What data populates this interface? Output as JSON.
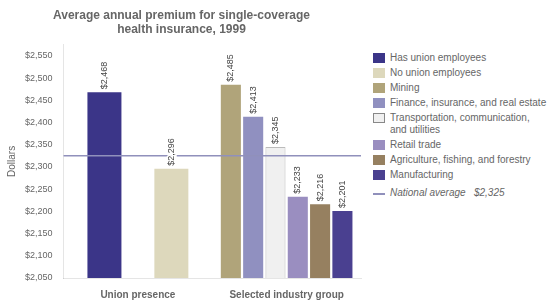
{
  "chart_data": {
    "type": "bar",
    "title": "Average annual premium for single-coverage\nhealth insurance, 1999",
    "ylabel": "Dollars",
    "categories": [
      "Union presence",
      "Selected industry group"
    ],
    "series": [
      {
        "name": "Has union employees",
        "color": "#3b3588",
        "values": [
          2468,
          null
        ],
        "value_labels": [
          "$2,468",
          null
        ]
      },
      {
        "name": "No union employees",
        "color": "#ddd8bc",
        "values": [
          2296,
          null
        ],
        "value_labels": [
          "$2,296",
          null
        ]
      },
      {
        "name": "Mining",
        "color": "#b0a47a",
        "values": [
          null,
          2485
        ],
        "value_labels": [
          null,
          "$2,485"
        ]
      },
      {
        "name": "Finance, insurance, and real estate",
        "color": "#9090c0",
        "values": [
          null,
          2413
        ],
        "value_labels": [
          null,
          "$2,413"
        ]
      },
      {
        "name": "Transportation, communication,\nand utilities",
        "color": "#f0f0f0",
        "values": [
          null,
          2345
        ],
        "value_labels": [
          null,
          "$2,345"
        ]
      },
      {
        "name": "Retail trade",
        "color": "#9a8ec0",
        "values": [
          null,
          2233
        ],
        "value_labels": [
          null,
          "$2,233"
        ]
      },
      {
        "name": "Agriculture, fishing, and forestry",
        "color": "#968060",
        "values": [
          null,
          2216
        ],
        "value_labels": [
          null,
          "$2,216"
        ]
      },
      {
        "name": "Manufacturing",
        "color": "#4a4090",
        "values": [
          null,
          2201
        ],
        "value_labels": [
          null,
          "$2,201"
        ]
      }
    ],
    "ylim": [
      2050,
      2575
    ],
    "yticks": [
      {
        "value": 2050,
        "label": "$2,050"
      },
      {
        "value": 2100,
        "label": "$2,100"
      },
      {
        "value": 2150,
        "label": "$2,150"
      },
      {
        "value": 2200,
        "label": "$2,200"
      },
      {
        "value": 2250,
        "label": "$2,250"
      },
      {
        "value": 2300,
        "label": "$2,300"
      },
      {
        "value": 2350,
        "label": "$2,350"
      },
      {
        "value": 2400,
        "label": "$2,400"
      },
      {
        "value": 2450,
        "label": "$2,450"
      },
      {
        "value": 2500,
        "label": "$2,500"
      },
      {
        "value": 2550,
        "label": "$2,550"
      }
    ],
    "grid": false,
    "legend": "right",
    "data_labels": true,
    "reference_line": {
      "value": 2325,
      "label": "National average   $2,325",
      "color": "#9090bb"
    }
  }
}
